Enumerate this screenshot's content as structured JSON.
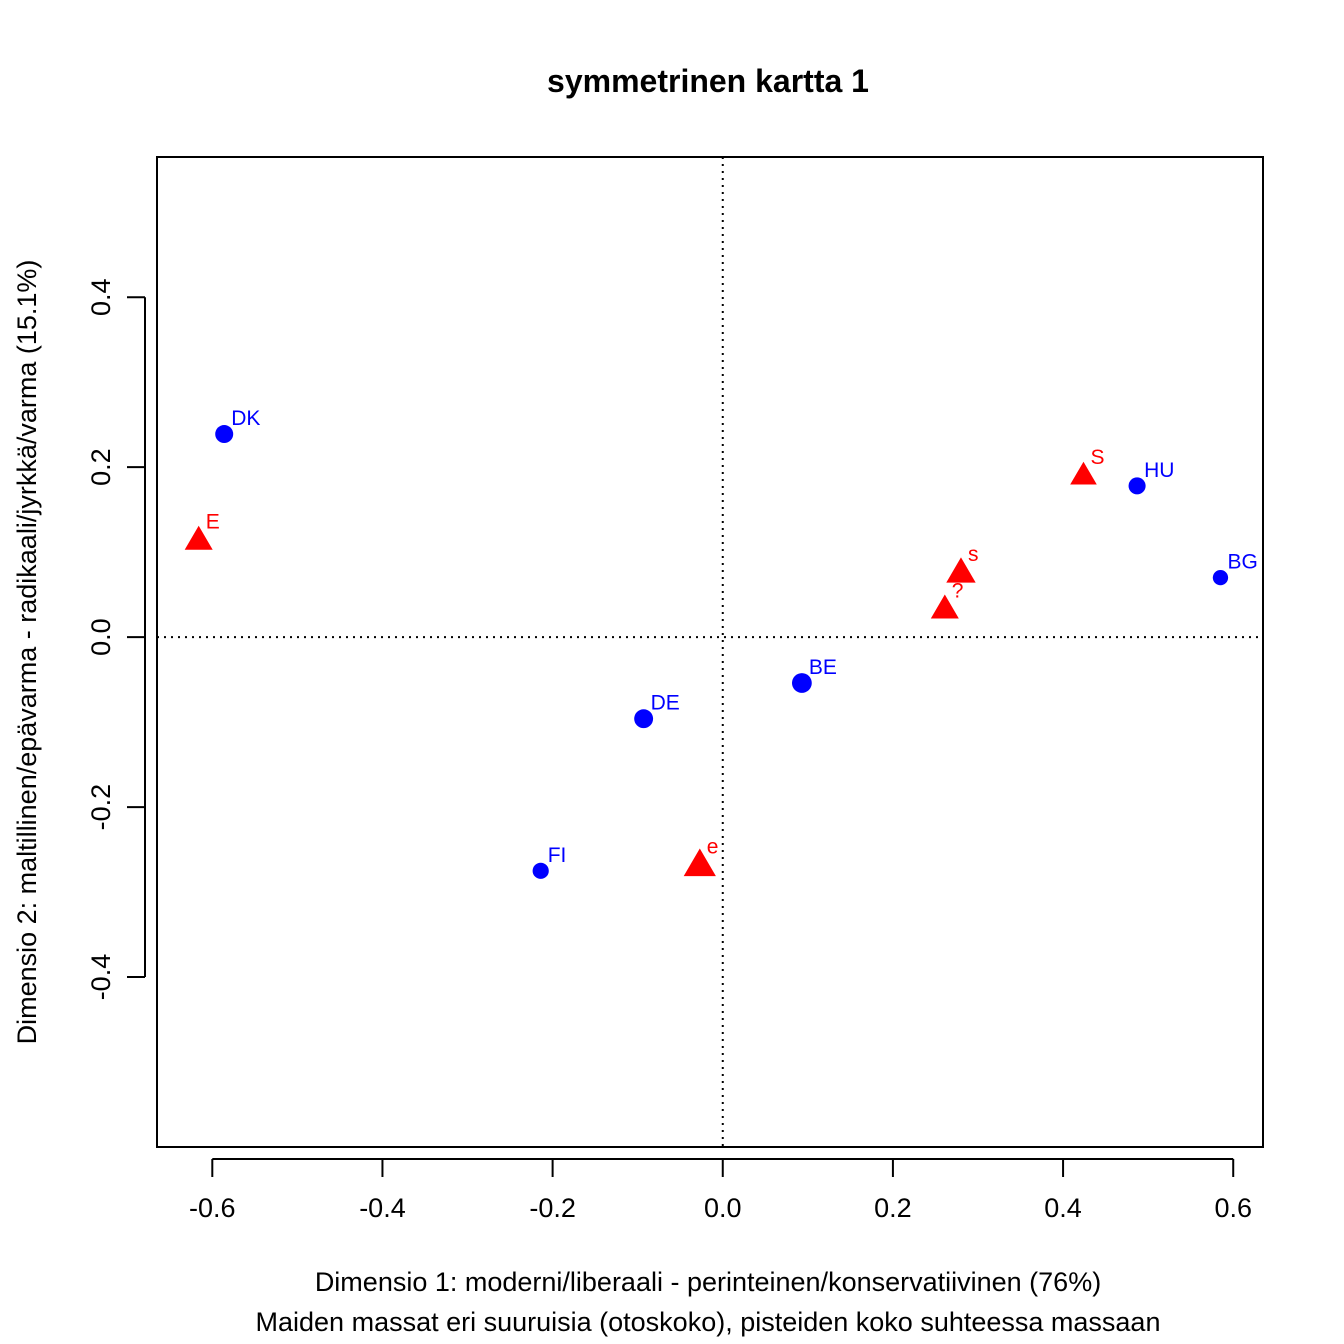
{
  "chart_data": {
    "type": "scatter",
    "title": "symmetrinen kartta 1",
    "xlabel": "Dimensio 1: moderni/liberaali - perinteinen/konservatiivinen (76%)",
    "subtitle": "Maiden massat eri suuruisia (otoskoko), pisteiden koko suhteessa massaan",
    "ylabel": "Dimensio 2: maltillinen/epävarma - radikaali/jyrkkä/varma (15.1%)",
    "xlim": [
      -0.665,
      0.635
    ],
    "ylim": [
      -0.6,
      0.565
    ],
    "x_ticks": [
      -0.6,
      -0.4,
      -0.2,
      0.0,
      0.2,
      0.4,
      0.6
    ],
    "x_tick_labels": [
      "-0.6",
      "-0.4",
      "-0.2",
      "0.0",
      "0.2",
      "0.4",
      "0.6"
    ],
    "y_ticks": [
      -0.4,
      -0.2,
      0.0,
      0.2,
      0.4
    ],
    "y_tick_labels": [
      "-0.4",
      "-0.2",
      "0.0",
      "0.2",
      "0.4"
    ],
    "reference_lines": {
      "x": 0,
      "y": 0,
      "style": "dotted"
    },
    "series": [
      {
        "color": "#0000FF",
        "marker": "circle",
        "points": [
          {
            "label": "DK",
            "x": -0.586,
            "y": 0.239,
            "size": 1.0
          },
          {
            "label": "HU",
            "x": 0.487,
            "y": 0.178,
            "size": 0.95
          },
          {
            "label": "BG",
            "x": 0.585,
            "y": 0.07,
            "size": 0.85
          },
          {
            "label": "BE",
            "x": 0.093,
            "y": -0.054,
            "size": 1.1
          },
          {
            "label": "DE",
            "x": -0.093,
            "y": -0.096,
            "size": 1.05
          },
          {
            "label": "FI",
            "x": -0.214,
            "y": -0.275,
            "size": 0.9
          }
        ]
      },
      {
        "color": "#FF0000",
        "marker": "triangle",
        "points": [
          {
            "label": "E",
            "x": -0.616,
            "y": 0.117,
            "size": 1.0
          },
          {
            "label": "S",
            "x": 0.424,
            "y": 0.193,
            "size": 0.95
          },
          {
            "label": "s",
            "x": 0.28,
            "y": 0.079,
            "size": 1.05
          },
          {
            "label": "?",
            "x": 0.261,
            "y": 0.036,
            "size": 1.0
          },
          {
            "label": "e",
            "x": -0.027,
            "y": -0.265,
            "size": 1.15
          }
        ]
      }
    ]
  }
}
